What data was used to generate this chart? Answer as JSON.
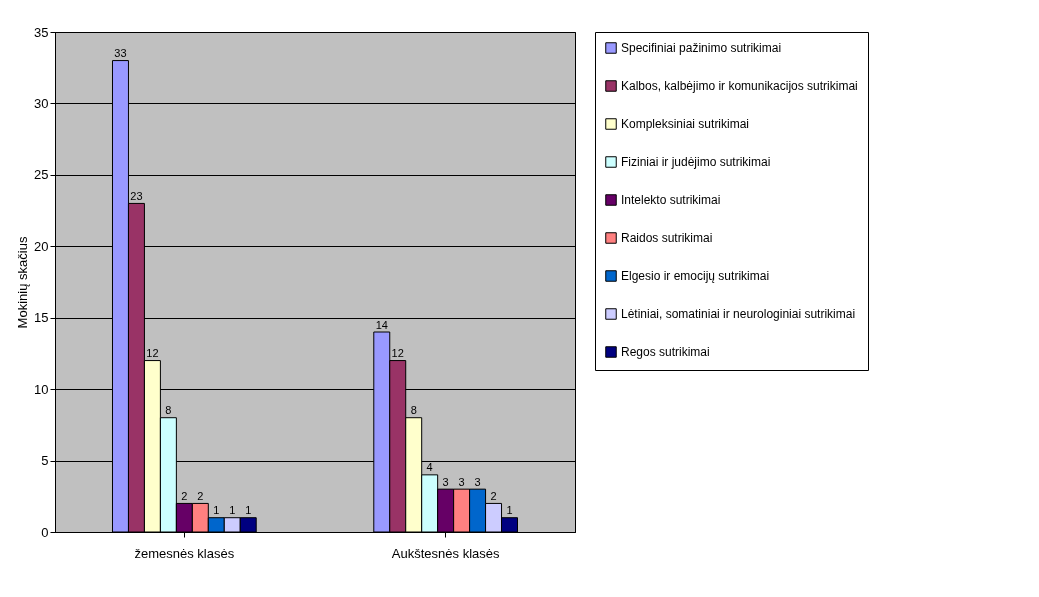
{
  "chart_data": {
    "type": "bar",
    "ylabel": "Mokinių skačius",
    "categories": [
      "žemesnės klasės",
      "Aukštesnės klasės"
    ],
    "series": [
      {
        "name": "Specifiniai pažinimo sutrikimai",
        "color": "#9999ff",
        "values": [
          33,
          14
        ]
      },
      {
        "name": "Kalbos, kalbėjimo ir komunikacijos sutrikimai",
        "color": "#993366",
        "values": [
          23,
          12
        ]
      },
      {
        "name": "Kompleksiniai sutrikimai",
        "color": "#ffffcc",
        "values": [
          12,
          8
        ]
      },
      {
        "name": "Fiziniai ir judėjimo sutrikimai",
        "color": "#ccffff",
        "values": [
          8,
          4
        ]
      },
      {
        "name": "Intelekto sutrikimai",
        "color": "#660066",
        "values": [
          2,
          3
        ]
      },
      {
        "name": "Raidos sutrikimai",
        "color": "#ff8080",
        "values": [
          2,
          3
        ]
      },
      {
        "name": "Elgesio ir emocijų sutrikimai",
        "color": "#0066cc",
        "values": [
          1,
          3
        ]
      },
      {
        "name": "Lėtiniai, somatiniai ir neurologiniai sutrikimai",
        "color": "#ccccff",
        "values": [
          1,
          2
        ]
      },
      {
        "name": "Regos sutrikimai",
        "color": "#000080",
        "values": [
          1,
          1
        ]
      }
    ],
    "ylim": [
      0,
      35
    ],
    "yticks": [
      0,
      5,
      10,
      15,
      20,
      25,
      30,
      35
    ],
    "grid": true,
    "legend": "right",
    "data_labels": true
  }
}
